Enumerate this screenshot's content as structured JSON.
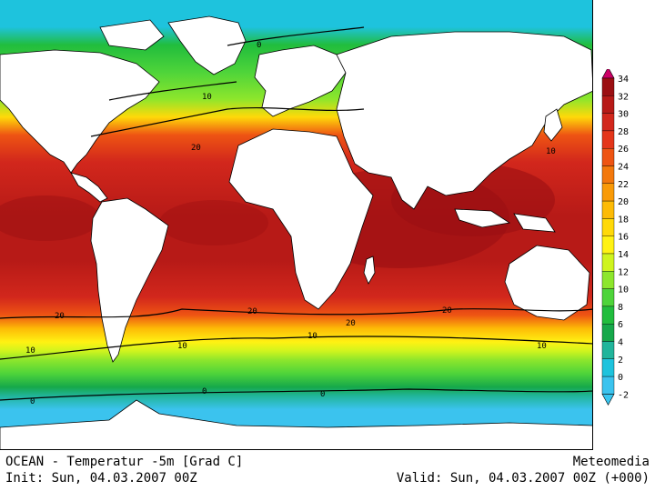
{
  "map": {
    "title": "OCEAN - Temperatur -5m [Grad C]",
    "source": "Meteomedia",
    "init": "Init: Sun, 04.03.2007 00Z",
    "valid": "Valid: Sun, 04.03.2007 00Z (+000)",
    "contour_labels": [
      "0",
      "10",
      "20",
      "20",
      "20",
      "20",
      "10",
      "10",
      "10",
      "10",
      "0",
      "0",
      "0",
      "20",
      "10"
    ]
  },
  "legend": {
    "ticks": [
      "34",
      "32",
      "30",
      "28",
      "26",
      "24",
      "22",
      "20",
      "18",
      "16",
      "14",
      "12",
      "10",
      "8",
      "6",
      "4",
      "2",
      "0",
      "-2"
    ],
    "colors": [
      "#cc0066",
      "#9b0f12",
      "#b71a17",
      "#d2271c",
      "#e4361a",
      "#ee5413",
      "#f3780c",
      "#f99a07",
      "#fdbb06",
      "#ffd909",
      "#fff213",
      "#cff41e",
      "#8de62c",
      "#4ed43a",
      "#21bd3d",
      "#16a84a",
      "#21b59b",
      "#1ec3dd",
      "#3bc3ee"
    ],
    "colors_bottom_arrow": "#38c6f0"
  },
  "colors": {
    "warm": "#c8190f",
    "hot": "#aa1010",
    "orange": "#ee6a14",
    "yellow": "#fcd909",
    "green": "#5dd23b",
    "teal": "#1aa84a",
    "cyan": "#3ec8f2",
    "land": "#ffffff"
  }
}
